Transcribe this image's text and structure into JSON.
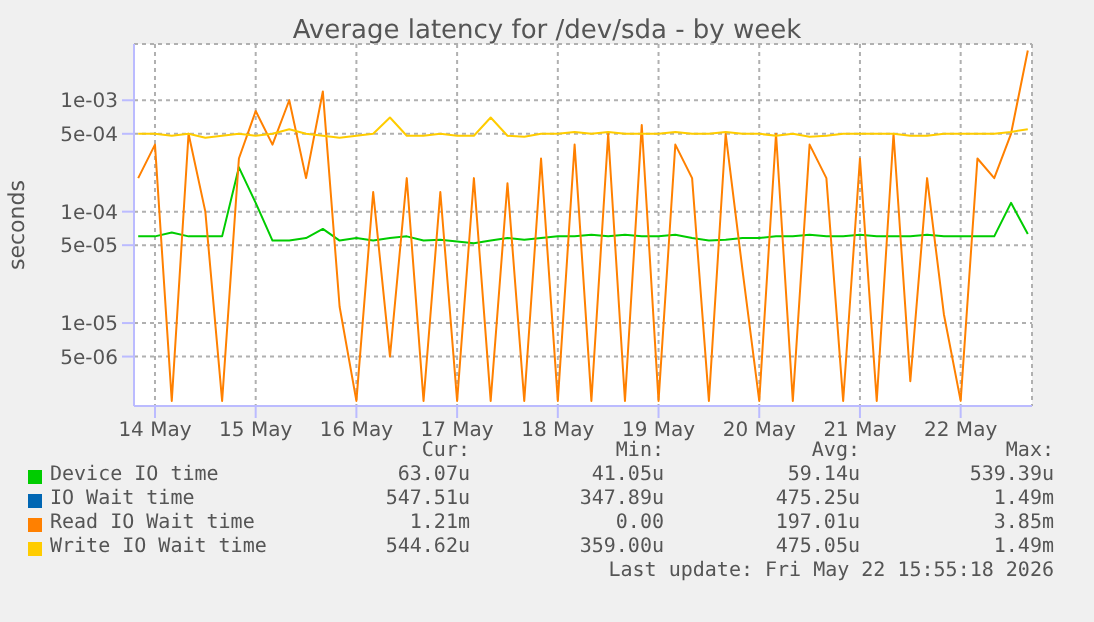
{
  "chart_data": {
    "type": "line",
    "title": "Average latency for /dev/sda - by week",
    "ylabel": "seconds",
    "log": true,
    "grid": true,
    "legend": "bottom",
    "marker": "none",
    "line_style": "solid",
    "x": [
      "2026-05-13T20:00",
      "2026-05-14T00:00",
      "2026-05-14T04:00",
      "2026-05-14T08:00",
      "2026-05-14T12:00",
      "2026-05-14T16:00",
      "2026-05-14T20:00",
      "2026-05-15T00:00",
      "2026-05-15T04:00",
      "2026-05-15T08:00",
      "2026-05-15T12:00",
      "2026-05-15T16:00",
      "2026-05-15T20:00",
      "2026-05-16T00:00",
      "2026-05-16T04:00",
      "2026-05-16T08:00",
      "2026-05-16T12:00",
      "2026-05-16T16:00",
      "2026-05-16T20:00",
      "2026-05-17T00:00",
      "2026-05-17T04:00",
      "2026-05-17T08:00",
      "2026-05-17T12:00",
      "2026-05-17T16:00",
      "2026-05-17T20:00",
      "2026-05-18T00:00",
      "2026-05-18T04:00",
      "2026-05-18T08:00",
      "2026-05-18T12:00",
      "2026-05-18T16:00",
      "2026-05-18T20:00",
      "2026-05-19T00:00",
      "2026-05-19T04:00",
      "2026-05-19T08:00",
      "2026-05-19T12:00",
      "2026-05-19T16:00",
      "2026-05-19T20:00",
      "2026-05-20T00:00",
      "2026-05-20T04:00",
      "2026-05-20T08:00",
      "2026-05-20T12:00",
      "2026-05-20T16:00",
      "2026-05-20T20:00",
      "2026-05-21T00:00",
      "2026-05-21T04:00",
      "2026-05-21T08:00",
      "2026-05-21T12:00",
      "2026-05-21T16:00",
      "2026-05-21T20:00",
      "2026-05-22T00:00",
      "2026-05-22T04:00",
      "2026-05-22T08:00",
      "2026-05-22T12:00",
      "2026-05-22T16:00"
    ],
    "xlim": [
      "2026-05-13T19:00",
      "2026-05-22T17:00"
    ],
    "xticks": [
      {
        "value": "2026-05-14",
        "label": "14 May"
      },
      {
        "value": "2026-05-15",
        "label": "15 May"
      },
      {
        "value": "2026-05-16",
        "label": "16 May"
      },
      {
        "value": "2026-05-17",
        "label": "17 May"
      },
      {
        "value": "2026-05-18",
        "label": "18 May"
      },
      {
        "value": "2026-05-19",
        "label": "19 May"
      },
      {
        "value": "2026-05-20",
        "label": "20 May"
      },
      {
        "value": "2026-05-21",
        "label": "21 May"
      },
      {
        "value": "2026-05-22",
        "label": "22 May"
      }
    ],
    "ylim": [
      1.8e-06,
      0.0032
    ],
    "yticks": [
      {
        "value": 5e-06,
        "label": "5e-06"
      },
      {
        "value": 1e-05,
        "label": "1e-05"
      },
      {
        "value": 5e-05,
        "label": "5e-05"
      },
      {
        "value": 0.0001,
        "label": "1e-04"
      },
      {
        "value": 0.0005,
        "label": "5e-04"
      },
      {
        "value": 0.001,
        "label": "1e-03"
      }
    ],
    "series": [
      {
        "name": "Device IO time",
        "color": "#00cc00",
        "values": [
          6e-05,
          6e-05,
          6.5e-05,
          6e-05,
          6e-05,
          6e-05,
          0.00025,
          0.00012,
          5.5e-05,
          5.5e-05,
          5.8e-05,
          7e-05,
          5.5e-05,
          5.8e-05,
          5.5e-05,
          5.8e-05,
          6e-05,
          5.5e-05,
          5.6e-05,
          5.4e-05,
          5.2e-05,
          5.5e-05,
          5.8e-05,
          5.6e-05,
          5.8e-05,
          6e-05,
          6e-05,
          6.2e-05,
          6e-05,
          6.2e-05,
          6e-05,
          6e-05,
          6.2e-05,
          5.8e-05,
          5.5e-05,
          5.6e-05,
          5.8e-05,
          5.8e-05,
          6e-05,
          6e-05,
          6.2e-05,
          6e-05,
          6e-05,
          6.2e-05,
          6e-05,
          6e-05,
          6e-05,
          6.2e-05,
          6e-05,
          6e-05,
          6e-05,
          6e-05,
          0.00012,
          6.3e-05
        ]
      },
      {
        "name": "IO Wait time",
        "color": "#0066b3",
        "values": [
          null,
          null,
          null,
          null,
          null,
          null,
          null,
          null,
          null,
          null,
          null,
          null,
          null,
          null,
          null,
          null,
          null,
          null,
          null,
          null,
          null,
          null,
          null,
          null,
          null,
          null,
          null,
          null,
          null,
          null,
          null,
          null,
          null,
          null,
          null,
          null,
          null,
          null,
          null,
          null,
          null,
          null,
          null,
          null,
          null,
          null,
          null,
          null,
          null,
          null,
          null,
          null,
          null,
          null
        ]
      },
      {
        "name": "Read IO Wait time",
        "color": "#ff8000",
        "values": [
          0.0002,
          0.0004,
          2e-06,
          0.0005,
          0.0001,
          2e-06,
          0.0003,
          0.0008,
          0.0004,
          0.001,
          0.0002,
          0.0012,
          1.4e-05,
          2e-06,
          0.00015,
          5e-06,
          0.0002,
          2e-06,
          0.00015,
          2e-06,
          0.0002,
          2e-06,
          0.00018,
          2e-06,
          0.0003,
          2e-06,
          0.0004,
          2e-06,
          0.0005,
          2e-06,
          0.0006,
          2e-06,
          0.0004,
          0.0002,
          2e-06,
          0.0005,
          3e-05,
          2e-06,
          0.0005,
          2e-06,
          0.0004,
          0.0002,
          2e-06,
          0.0003,
          2e-06,
          0.0005,
          3e-06,
          0.0002,
          1.2e-05,
          2e-06,
          0.0003,
          0.0002,
          0.0005,
          0.0028
        ]
      },
      {
        "name": "Write IO Wait time",
        "color": "#ffcc00",
        "values": [
          0.0005,
          0.0005,
          0.00048,
          0.0005,
          0.00046,
          0.00048,
          0.0005,
          0.00048,
          0.0005,
          0.00055,
          0.0005,
          0.00048,
          0.00046,
          0.00048,
          0.0005,
          0.0007,
          0.00048,
          0.00048,
          0.0005,
          0.00048,
          0.00048,
          0.0007,
          0.00048,
          0.00047,
          0.0005,
          0.0005,
          0.00052,
          0.0005,
          0.00052,
          0.0005,
          0.0005,
          0.0005,
          0.00052,
          0.0005,
          0.0005,
          0.00052,
          0.0005,
          0.0005,
          0.00048,
          0.0005,
          0.00047,
          0.00048,
          0.0005,
          0.0005,
          0.0005,
          0.0005,
          0.00048,
          0.00048,
          0.0005,
          0.0005,
          0.0005,
          0.0005,
          0.00052,
          0.00055
        ]
      }
    ],
    "annotations": [
      "Cur:",
      "Min:",
      "Avg:",
      "Max:",
      "63.07u",
      "41.05u",
      "59.14u",
      "539.39u",
      "547.51u",
      "347.89u",
      "475.25u",
      "1.49m",
      "1.21m",
      "0.00",
      "197.01u",
      "3.85m",
      "544.62u",
      "359.00u",
      "475.05u",
      "1.49m",
      "Last update: Fri May 22 15:55:18 2026"
    ]
  }
}
